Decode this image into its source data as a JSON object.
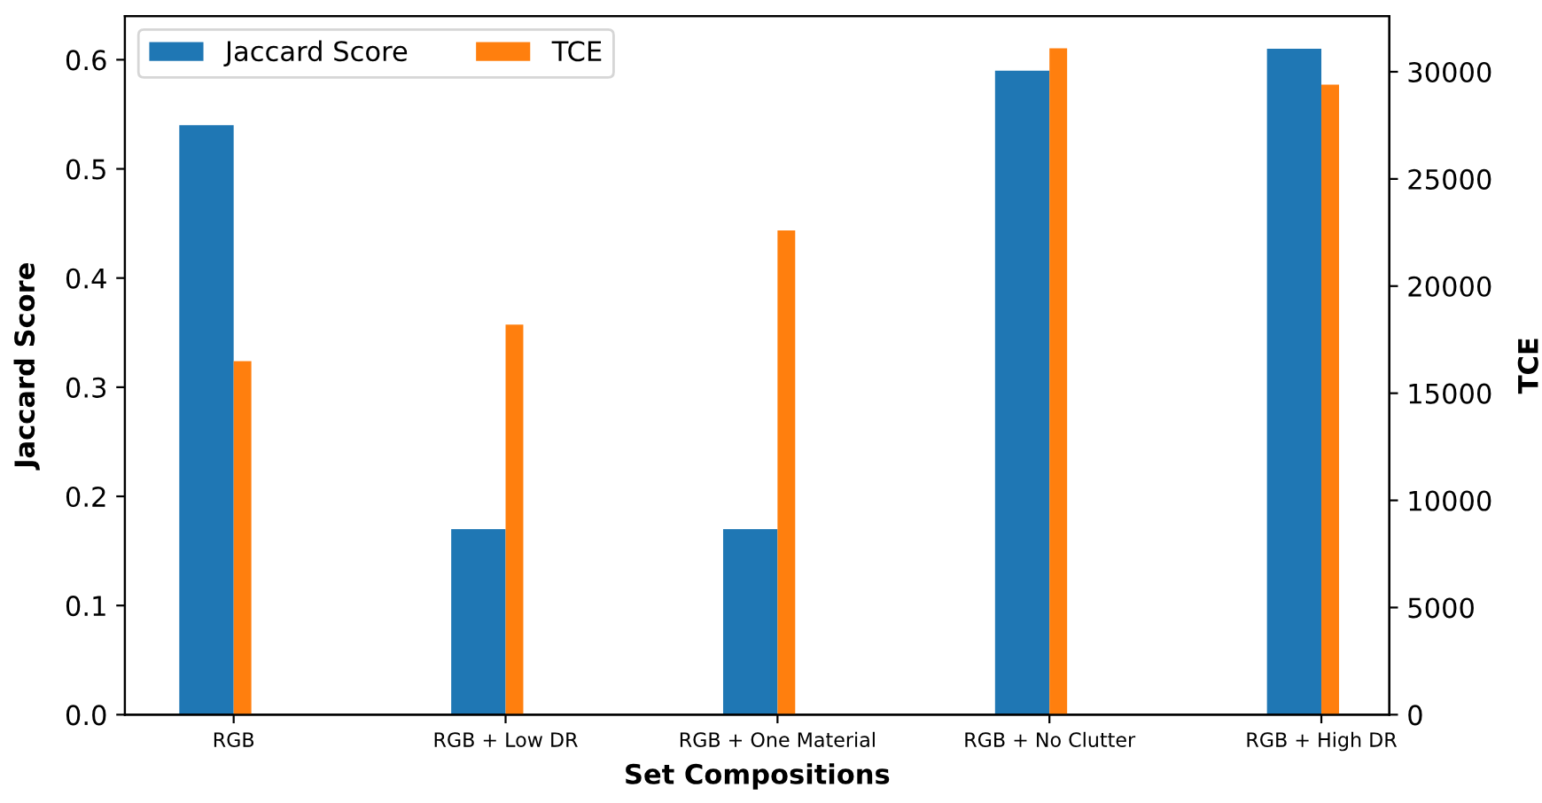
{
  "chart_data": {
    "type": "bar",
    "xlabel": "Set Compositions",
    "ylabel": "Jaccard Score",
    "y2label": "TCE",
    "categories": [
      "RGB",
      "RGB + Low DR",
      "RGB + One Material",
      "RGB + No Clutter",
      "RGB + High DR"
    ],
    "series": [
      {
        "name": "Jaccard Score",
        "color": "#1f77b4",
        "values": [
          0.54,
          0.17,
          0.17,
          0.59,
          0.61
        ]
      },
      {
        "name": "TCE",
        "color": "#ff7f0e",
        "axis": "y2",
        "values": [
          16500,
          18200,
          22600,
          31100,
          29400
        ]
      }
    ],
    "ylim": [
      0,
      0.64
    ],
    "yticks": [
      {
        "value": 0,
        "label": "0.0"
      },
      0.1,
      0.2,
      0.3,
      0.4,
      0.5,
      0.6
    ],
    "y2lim": [
      0,
      32600
    ],
    "y2ticks": [
      0,
      5000,
      10000,
      15000,
      20000,
      25000,
      30000
    ],
    "legend": "top left",
    "grid": false
  }
}
